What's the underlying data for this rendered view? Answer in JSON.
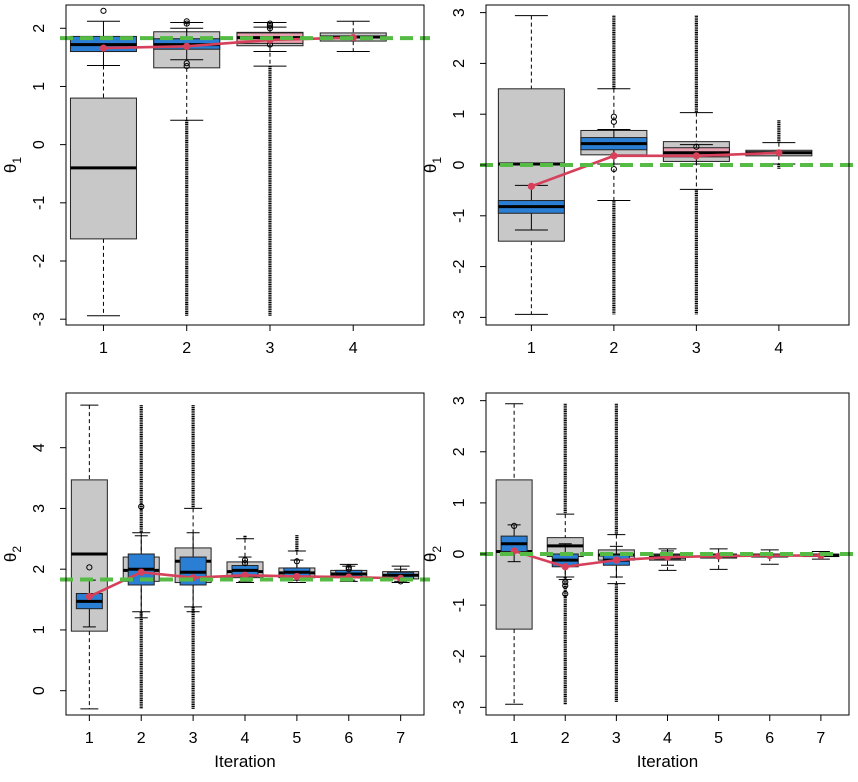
{
  "colors": {
    "gray_box": "#c8c8c8",
    "blue_box": "#2a7fd4",
    "pink_box": "#e8a0b0",
    "red_line": "#d6405a",
    "green_ref": "#55bb44"
  },
  "chart_data": [
    {
      "type": "box",
      "panel": "top-left",
      "ylabel": "θ1",
      "xlabel": "",
      "xticks": [
        "1",
        "2",
        "3",
        "4"
      ],
      "ylim": [
        -3.1,
        2.4
      ],
      "yticks": [
        -3,
        -2,
        -1,
        0,
        1,
        2
      ],
      "reference_line": 1.83,
      "mean_path": [
        1.66,
        1.69,
        1.8,
        1.84
      ],
      "wide_boxes": [
        {
          "x": 1,
          "q1": -1.62,
          "median": -0.4,
          "q3": 0.8,
          "wlo": -2.94,
          "whi": 1.36
        },
        {
          "x": 2,
          "q1": 1.32,
          "median": 1.74,
          "q3": 1.94,
          "wlo": 0.42,
          "whi": 2.1
        },
        {
          "x": 3,
          "q1": 1.7,
          "median": 1.84,
          "q3": 1.93,
          "wlo": 1.35,
          "whi": 2.1
        },
        {
          "x": 4,
          "q1": 1.78,
          "median": 1.85,
          "q3": 1.92,
          "wlo": 1.6,
          "whi": 2.12
        }
      ],
      "narrow_boxes": [
        {
          "x": 1,
          "color": "blue",
          "q1": 1.6,
          "median": 1.72,
          "q3": 1.86,
          "wlo": 1.36,
          "whi": 2.12
        },
        {
          "x": 2,
          "color": "blue",
          "q1": 1.64,
          "median": 1.72,
          "q3": 1.82,
          "wlo": 1.46,
          "whi": 2.0
        },
        {
          "x": 3,
          "color": "pink",
          "q1": 1.74,
          "median": 1.84,
          "q3": 1.92,
          "wlo": 1.6,
          "whi": 2.02
        }
      ],
      "outlier_points": [
        {
          "x": 1,
          "y": 2.3
        },
        {
          "x": 2,
          "y": 2.12
        },
        {
          "x": 2,
          "y": 2.08
        },
        {
          "x": 2,
          "y": 1.4
        },
        {
          "x": 2,
          "y": 1.35
        },
        {
          "x": 3,
          "y": 2.08
        },
        {
          "x": 3,
          "y": 2.04
        },
        {
          "x": 3,
          "y": 2.0
        },
        {
          "x": 3,
          "y": 1.72
        }
      ],
      "outlier_bands": [
        {
          "x": 2,
          "from": -2.94,
          "to": 0.42
        },
        {
          "x": 3,
          "from": -2.94,
          "to": 1.35
        }
      ]
    },
    {
      "type": "box",
      "panel": "top-right",
      "ylabel": "θ1",
      "xlabel": "",
      "xticks": [
        "1",
        "2",
        "3",
        "4"
      ],
      "ylim": [
        -3.15,
        3.15
      ],
      "yticks": [
        -3,
        -2,
        -1,
        0,
        1,
        2,
        3
      ],
      "reference_line": 0.0,
      "mean_path": [
        -0.42,
        0.18,
        0.18,
        0.24
      ],
      "wide_boxes": [
        {
          "x": 1,
          "q1": -1.5,
          "median": 0.02,
          "q3": 1.5,
          "wlo": -2.94,
          "whi": 2.94
        },
        {
          "x": 2,
          "q1": 0.2,
          "median": 0.45,
          "q3": 0.68,
          "wlo": -0.7,
          "whi": 1.5
        },
        {
          "x": 3,
          "q1": 0.07,
          "median": 0.25,
          "q3": 0.46,
          "wlo": -0.48,
          "whi": 1.03
        },
        {
          "x": 4,
          "q1": 0.18,
          "median": 0.24,
          "q3": 0.29,
          "wlo": 0.02,
          "whi": 0.44
        }
      ],
      "narrow_boxes": [
        {
          "x": 1,
          "color": "blue",
          "q1": -0.95,
          "median": -0.82,
          "q3": -0.7,
          "wlo": -1.28,
          "whi": -0.4
        },
        {
          "x": 2,
          "color": "blue",
          "q1": 0.3,
          "median": 0.42,
          "q3": 0.54,
          "wlo": 0.02,
          "whi": 0.7
        },
        {
          "x": 3,
          "color": "pink",
          "q1": 0.16,
          "median": 0.24,
          "q3": 0.34,
          "wlo": 0.02,
          "whi": 0.4
        }
      ],
      "outlier_points": [
        {
          "x": 2,
          "y": 0.95
        },
        {
          "x": 2,
          "y": 0.85
        },
        {
          "x": 2,
          "y": -0.08
        },
        {
          "x": 3,
          "y": 0.36
        }
      ],
      "outlier_bands": [
        {
          "x": 2,
          "from": 1.5,
          "to": 2.94
        },
        {
          "x": 2,
          "from": -2.94,
          "to": -0.7
        },
        {
          "x": 3,
          "from": 1.03,
          "to": 2.94
        },
        {
          "x": 3,
          "from": -2.94,
          "to": -0.48
        },
        {
          "x": 4,
          "from": 0.44,
          "to": 0.88
        },
        {
          "x": 4,
          "from": -0.08,
          "to": 0.02
        }
      ]
    },
    {
      "type": "box",
      "panel": "bottom-left",
      "ylabel": "θ2",
      "xlabel": "Iteration",
      "xticks": [
        "1",
        "2",
        "3",
        "4",
        "5",
        "6",
        "7"
      ],
      "ylim": [
        -0.4,
        4.9
      ],
      "yticks": [
        0,
        1,
        2,
        3,
        4
      ],
      "reference_line": 1.83,
      "mean_path": [
        1.55,
        1.95,
        1.86,
        1.9,
        1.88,
        1.87,
        1.85
      ],
      "wide_boxes": [
        {
          "x": 1,
          "q1": 0.98,
          "median": 2.25,
          "q3": 3.47,
          "wlo": -0.3,
          "whi": 4.7
        },
        {
          "x": 2,
          "q1": 1.8,
          "median": 1.98,
          "q3": 2.2,
          "wlo": 1.3,
          "whi": 2.6
        },
        {
          "x": 3,
          "q1": 1.78,
          "median": 2.13,
          "q3": 2.35,
          "wlo": 1.38,
          "whi": 3.0
        },
        {
          "x": 4,
          "q1": 1.86,
          "median": 1.96,
          "q3": 2.12,
          "wlo": 1.78,
          "whi": 2.5
        },
        {
          "x": 5,
          "q1": 1.86,
          "median": 1.94,
          "q3": 2.02,
          "wlo": 1.78,
          "whi": 2.3
        },
        {
          "x": 6,
          "q1": 1.86,
          "median": 1.92,
          "q3": 1.98,
          "wlo": 1.8,
          "whi": 2.08
        },
        {
          "x": 7,
          "q1": 1.84,
          "median": 1.9,
          "q3": 1.96,
          "wlo": 1.78,
          "whi": 2.05
        }
      ],
      "narrow_boxes": [
        {
          "x": 1,
          "color": "blue",
          "q1": 1.35,
          "median": 1.47,
          "q3": 1.6,
          "wlo": 1.05,
          "whi": 1.82
        },
        {
          "x": 2,
          "color": "blue",
          "q1": 1.74,
          "median": 2.0,
          "q3": 2.25,
          "wlo": 1.2,
          "whi": 2.55
        },
        {
          "x": 3,
          "color": "blue",
          "q1": 1.74,
          "median": 1.95,
          "q3": 2.2,
          "wlo": 1.3,
          "whi": 2.6
        },
        {
          "x": 4,
          "color": "blue",
          "q1": 1.88,
          "median": 1.98,
          "q3": 2.06,
          "wlo": 1.8,
          "whi": 2.2
        },
        {
          "x": 5,
          "color": "blue",
          "q1": 1.88,
          "median": 1.95,
          "q3": 2.02,
          "wlo": 1.82,
          "whi": 2.15
        },
        {
          "x": 6,
          "color": "blue",
          "q1": 1.88,
          "median": 1.92,
          "q3": 1.98,
          "wlo": 1.82,
          "whi": 2.05
        },
        {
          "x": 7,
          "color": "blue",
          "q1": 1.85,
          "median": 1.9,
          "q3": 1.95,
          "wlo": 1.8,
          "whi": 2.0
        }
      ],
      "outlier_points": [
        {
          "x": 1,
          "y": 2.03
        },
        {
          "x": 2,
          "y": 3.03
        },
        {
          "x": 4,
          "y": 2.15
        },
        {
          "x": 4,
          "y": 2.1
        },
        {
          "x": 5,
          "y": 2.13
        },
        {
          "x": 6,
          "y": 2.03
        },
        {
          "x": 6,
          "y": 2.0
        },
        {
          "x": 7,
          "y": 1.8
        }
      ],
      "outlier_bands": [
        {
          "x": 2,
          "from": 2.6,
          "to": 4.7
        },
        {
          "x": 2,
          "from": -0.3,
          "to": 1.3
        },
        {
          "x": 3,
          "from": 3.0,
          "to": 4.7
        },
        {
          "x": 3,
          "from": -0.3,
          "to": 1.38
        },
        {
          "x": 4,
          "from": 2.5,
          "to": 2.55
        },
        {
          "x": 5,
          "from": 2.3,
          "to": 2.56
        }
      ]
    },
    {
      "type": "box",
      "panel": "bottom-right",
      "ylabel": "θ2",
      "xlabel": "Iteration",
      "xticks": [
        "1",
        "2",
        "3",
        "4",
        "5",
        "6",
        "7"
      ],
      "ylim": [
        -3.15,
        3.15
      ],
      "yticks": [
        -3,
        -2,
        -1,
        0,
        1,
        2,
        3
      ],
      "reference_line": 0.0,
      "mean_path": [
        0.06,
        -0.25,
        -0.12,
        -0.06,
        -0.04,
        -0.03,
        -0.03
      ],
      "wide_boxes": [
        {
          "x": 1,
          "q1": -1.47,
          "median": 0.05,
          "q3": 1.45,
          "wlo": -2.94,
          "whi": 2.94
        },
        {
          "x": 2,
          "q1": -0.05,
          "median": 0.16,
          "q3": 0.32,
          "wlo": -0.45,
          "whi": 0.78
        },
        {
          "x": 3,
          "q1": -0.12,
          "median": -0.02,
          "q3": 0.08,
          "wlo": -0.58,
          "whi": 0.38
        },
        {
          "x": 4,
          "q1": -0.12,
          "median": -0.06,
          "q3": 0.0,
          "wlo": -0.32,
          "whi": 0.1
        },
        {
          "x": 5,
          "q1": -0.08,
          "median": -0.04,
          "q3": 0.0,
          "wlo": -0.3,
          "whi": 0.1
        },
        {
          "x": 6,
          "q1": -0.06,
          "median": -0.03,
          "q3": 0.0,
          "wlo": -0.2,
          "whi": 0.08
        },
        {
          "x": 7,
          "q1": -0.05,
          "median": -0.03,
          "q3": 0.0,
          "wlo": -0.1,
          "whi": 0.05
        }
      ],
      "narrow_boxes": [
        {
          "x": 1,
          "color": "blue",
          "q1": 0.05,
          "median": 0.2,
          "q3": 0.35,
          "wlo": -0.15,
          "whi": 0.57
        },
        {
          "x": 2,
          "color": "blue",
          "q1": -0.25,
          "median": -0.12,
          "q3": 0.0,
          "wlo": -0.5,
          "whi": 0.2
        },
        {
          "x": 3,
          "color": "blue",
          "q1": -0.22,
          "median": -0.12,
          "q3": -0.02,
          "wlo": -0.45,
          "whi": 0.15
        },
        {
          "x": 4,
          "color": "blue",
          "q1": -0.1,
          "median": -0.06,
          "q3": -0.02,
          "wlo": -0.22,
          "whi": 0.06
        }
      ],
      "outlier_points": [
        {
          "x": 1,
          "y": 0.55
        },
        {
          "x": 2,
          "y": -0.55
        },
        {
          "x": 2,
          "y": -0.62
        },
        {
          "x": 2,
          "y": -0.78
        }
      ],
      "outlier_bands": [
        {
          "x": 2,
          "from": 0.78,
          "to": 2.94
        },
        {
          "x": 2,
          "from": -2.94,
          "to": -0.45
        },
        {
          "x": 3,
          "from": 0.38,
          "to": 2.94
        },
        {
          "x": 3,
          "from": -2.9,
          "to": -0.58
        }
      ]
    }
  ]
}
